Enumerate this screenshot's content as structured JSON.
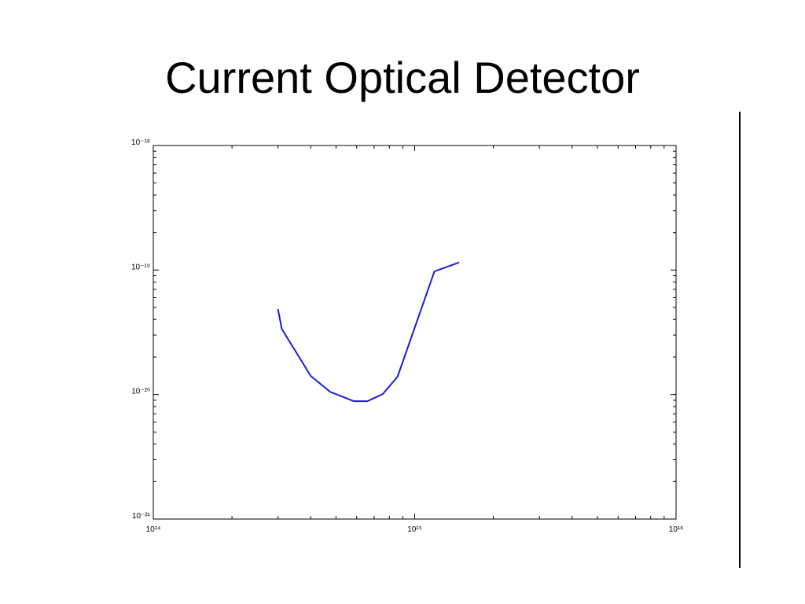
{
  "chart_data": {
    "type": "line",
    "title": "Current Optical Detector",
    "xscale": "log",
    "yscale": "log",
    "xlim": [
      100000000000000.0,
      1e+16
    ],
    "ylim": [
      1e-21,
      1e-18
    ],
    "xticks": [
      {
        "value": 100000000000000.0,
        "label": "10¹⁴"
      },
      {
        "value": 1000000000000000.0,
        "label": "10¹⁵"
      },
      {
        "value": 1e+16,
        "label": "10¹⁶"
      }
    ],
    "yticks": [
      {
        "value": 1e-21,
        "label": "10⁻²¹"
      },
      {
        "value": 1e-20,
        "label": "10⁻²⁰"
      },
      {
        "value": 1e-19,
        "label": "10⁻¹⁹"
      },
      {
        "value": 1e-18,
        "label": "10⁻¹⁸"
      }
    ],
    "xminorticks": [
      200000000000000.0,
      300000000000000.0,
      400000000000000.0,
      500000000000000.0,
      600000000000000.0,
      700000000000000.0,
      800000000000000.0,
      900000000000000.0,
      2000000000000000.0,
      3000000000000000.0,
      4000000000000000.0,
      5000000000000000.0,
      6000000000000000.0,
      7000000000000000.0,
      8000000000000000.0,
      9000000000000000.0
    ],
    "yminorticks": [
      2e-21,
      3e-21,
      4e-21,
      5e-21,
      6e-21,
      7e-21,
      8e-21,
      9e-21,
      2e-20,
      3e-20,
      4e-20,
      5e-20,
      6e-20,
      7e-20,
      8e-20,
      9e-20,
      2e-19,
      3e-19,
      4e-19,
      5e-19,
      6e-19,
      7e-19,
      8e-19,
      9e-19
    ],
    "grid": false,
    "series": [
      {
        "color": "#1a1ad8",
        "x": [
          300000000000000.0,
          310000000000000.0,
          400000000000000.0,
          475000000000000.0,
          585000000000000.0,
          660000000000000.0,
          755000000000000.0,
          860000000000000.0,
          1190000000000000.0,
          1480000000000000.0
        ],
        "values": [
          4.85e-20,
          3.37e-20,
          1.41e-20,
          1.05e-20,
          8.85e-21,
          8.85e-21,
          1.01e-20,
          1.39e-20,
          9.75e-20,
          1.15e-19
        ]
      }
    ]
  }
}
